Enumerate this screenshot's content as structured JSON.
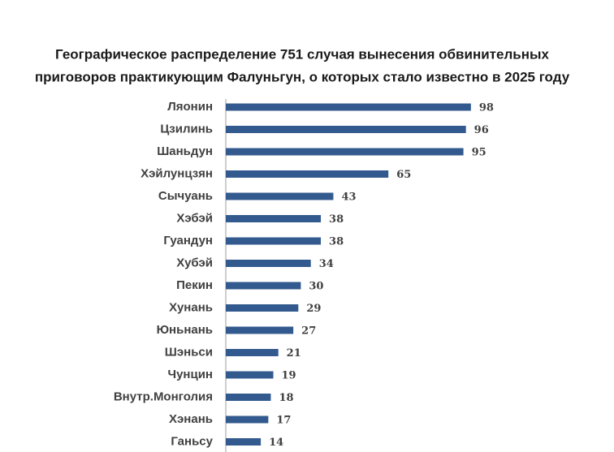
{
  "chart_data": {
    "type": "barh",
    "title": [
      "Географическое распределение 751 случая вынесения обвинительных",
      "приговоров практикующим Фалуньгун, о которых стало известно в 2025 году"
    ],
    "categories": [
      "Ляонин",
      "Цзилинь",
      "Шаньдун",
      "Хэйлунцзян",
      "Сычуань",
      "Хэбэй",
      "Гуандун",
      "Хубэй",
      "Пекин",
      "Хунань",
      "Юньнань",
      "Шэньси",
      "Чунцин",
      "Внутр.Монголия",
      "Хэнань",
      "Ганьсу"
    ],
    "values": [
      98,
      96,
      95,
      65,
      43,
      38,
      38,
      34,
      30,
      29,
      27,
      21,
      19,
      18,
      17,
      14
    ],
    "color": "#335a8e",
    "xlim": [
      0,
      100
    ]
  }
}
